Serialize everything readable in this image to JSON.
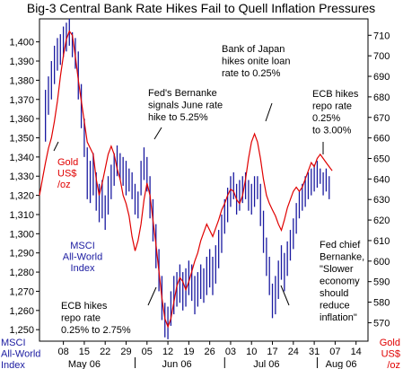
{
  "chart_data": {
    "type": "line",
    "title": "Big-3 Central Bank Rate Hikes Fail to Quell Inflation Pressures",
    "colors": {
      "msci": "#1a1aa0",
      "gold": "#e00000",
      "text": "#000000"
    },
    "x_ticks": [
      "08",
      "15",
      "22",
      "29",
      "05",
      "12",
      "19",
      "26",
      "03",
      "10",
      "17",
      "24",
      "31",
      "07",
      "14"
    ],
    "months": [
      {
        "label": "May 06",
        "center_day": 15
      },
      {
        "label": "Jun 06",
        "center_day": 46
      },
      {
        "label": "Jul 06",
        "center_day": 76
      },
      {
        "label": "Aug 06",
        "center_day": 101
      }
    ],
    "month_separator_days": [
      32,
      62,
      93
    ],
    "x_range_days": [
      0,
      110
    ],
    "left_axis": {
      "ylim": [
        1244,
        1412
      ],
      "ticks": [
        1250,
        1260,
        1270,
        1280,
        1290,
        1300,
        1310,
        1320,
        1330,
        1340,
        1350,
        1360,
        1370,
        1380,
        1390,
        1400
      ],
      "tick_labels": [
        "1,250",
        "1,260",
        "1,270",
        "1,280",
        "1,290",
        "1,300",
        "1,310",
        "1,320",
        "1,330",
        "1,340",
        "1,350",
        "1,360",
        "1,370",
        "1,380",
        "1,390",
        "1,400"
      ],
      "label_lines": [
        "MSCI",
        "All-World",
        "Index"
      ]
    },
    "right_axis": {
      "ylim": [
        561,
        718
      ],
      "ticks": [
        570,
        580,
        590,
        600,
        610,
        620,
        630,
        640,
        650,
        660,
        670,
        680,
        690,
        700,
        710
      ],
      "label_lines": [
        "Gold",
        "US$",
        "/oz"
      ]
    },
    "series": [
      {
        "name": "MSCI All-World Index",
        "axis": "left",
        "style": "hlc-bars",
        "bars": [
          [
            2,
            1348,
            1375
          ],
          [
            3,
            1362,
            1382
          ],
          [
            4,
            1370,
            1390
          ],
          [
            5,
            1378,
            1398
          ],
          [
            6,
            1385,
            1402
          ],
          [
            7,
            1388,
            1404
          ],
          [
            8,
            1392,
            1408
          ],
          [
            9,
            1395,
            1410
          ],
          [
            10,
            1398,
            1412
          ],
          [
            11,
            1392,
            1405
          ],
          [
            12,
            1386,
            1402
          ],
          [
            13,
            1370,
            1395
          ],
          [
            14,
            1355,
            1378
          ],
          [
            15,
            1340,
            1360
          ],
          [
            16,
            1318,
            1345
          ],
          [
            17,
            1316,
            1338
          ],
          [
            18,
            1320,
            1342
          ],
          [
            19,
            1312,
            1332
          ],
          [
            20,
            1306,
            1326
          ],
          [
            21,
            1308,
            1328
          ],
          [
            22,
            1302,
            1320
          ],
          [
            23,
            1310,
            1330
          ],
          [
            24,
            1318,
            1336
          ],
          [
            25,
            1325,
            1342
          ],
          [
            26,
            1330,
            1346
          ],
          [
            27,
            1328,
            1342
          ],
          [
            28,
            1325,
            1340
          ],
          [
            29,
            1320,
            1338
          ],
          [
            30,
            1322,
            1334
          ],
          [
            31,
            1318,
            1332
          ],
          [
            32,
            1310,
            1326
          ],
          [
            33,
            1308,
            1322
          ],
          [
            34,
            1320,
            1338
          ],
          [
            35,
            1328,
            1345
          ],
          [
            36,
            1322,
            1340
          ],
          [
            37,
            1308,
            1330
          ],
          [
            38,
            1296,
            1318
          ],
          [
            39,
            1282,
            1305
          ],
          [
            40,
            1270,
            1292
          ],
          [
            41,
            1255,
            1278
          ],
          [
            42,
            1246,
            1264
          ],
          [
            43,
            1245,
            1262
          ],
          [
            44,
            1252,
            1270
          ],
          [
            45,
            1258,
            1278
          ],
          [
            46,
            1262,
            1280
          ],
          [
            47,
            1264,
            1284
          ],
          [
            48,
            1260,
            1280
          ],
          [
            49,
            1262,
            1282
          ],
          [
            50,
            1268,
            1286
          ],
          [
            51,
            1265,
            1284
          ],
          [
            52,
            1258,
            1278
          ],
          [
            53,
            1262,
            1280
          ],
          [
            54,
            1266,
            1284
          ],
          [
            55,
            1264,
            1282
          ],
          [
            56,
            1268,
            1288
          ],
          [
            57,
            1272,
            1292
          ],
          [
            58,
            1268,
            1288
          ],
          [
            59,
            1274,
            1294
          ],
          [
            60,
            1282,
            1302
          ],
          [
            61,
            1290,
            1310
          ],
          [
            62,
            1300,
            1318
          ],
          [
            63,
            1306,
            1324
          ],
          [
            64,
            1314,
            1330
          ],
          [
            65,
            1318,
            1332
          ],
          [
            66,
            1310,
            1326
          ],
          [
            67,
            1312,
            1328
          ],
          [
            68,
            1316,
            1330
          ],
          [
            69,
            1318,
            1332
          ],
          [
            70,
            1312,
            1328
          ],
          [
            71,
            1310,
            1326
          ],
          [
            72,
            1314,
            1330
          ],
          [
            73,
            1318,
            1330
          ],
          [
            74,
            1304,
            1326
          ],
          [
            75,
            1290,
            1312
          ],
          [
            76,
            1278,
            1298
          ],
          [
            77,
            1268,
            1288
          ],
          [
            78,
            1256,
            1274
          ],
          [
            79,
            1258,
            1278
          ],
          [
            80,
            1266,
            1286
          ],
          [
            81,
            1276,
            1294
          ],
          [
            82,
            1270,
            1290
          ],
          [
            83,
            1278,
            1296
          ],
          [
            84,
            1286,
            1302
          ],
          [
            85,
            1292,
            1308
          ],
          [
            86,
            1300,
            1316
          ],
          [
            87,
            1308,
            1322
          ],
          [
            88,
            1312,
            1326
          ],
          [
            89,
            1314,
            1330
          ],
          [
            90,
            1318,
            1332
          ],
          [
            91,
            1320,
            1334
          ],
          [
            92,
            1322,
            1336
          ],
          [
            93,
            1324,
            1338
          ],
          [
            94,
            1326,
            1334
          ],
          [
            95,
            1320,
            1332
          ],
          [
            96,
            1322,
            1334
          ],
          [
            97,
            1318,
            1330
          ]
        ]
      },
      {
        "name": "Gold US$/oz",
        "axis": "right",
        "style": "line",
        "points": [
          [
            0,
            632
          ],
          [
            1,
            640
          ],
          [
            2,
            648
          ],
          [
            3,
            655
          ],
          [
            4,
            660
          ],
          [
            5,
            668
          ],
          [
            6,
            678
          ],
          [
            7,
            690
          ],
          [
            8,
            700
          ],
          [
            9,
            708
          ],
          [
            10,
            712
          ],
          [
            11,
            710
          ],
          [
            12,
            700
          ],
          [
            13,
            688
          ],
          [
            14,
            678
          ],
          [
            15,
            668
          ],
          [
            16,
            658
          ],
          [
            17,
            655
          ],
          [
            18,
            652
          ],
          [
            19,
            640
          ],
          [
            20,
            632
          ],
          [
            21,
            638
          ],
          [
            22,
            645
          ],
          [
            23,
            652
          ],
          [
            24,
            656
          ],
          [
            25,
            652
          ],
          [
            26,
            645
          ],
          [
            27,
            640
          ],
          [
            28,
            632
          ],
          [
            29,
            628
          ],
          [
            30,
            622
          ],
          [
            31,
            612
          ],
          [
            32,
            605
          ],
          [
            33,
            610
          ],
          [
            34,
            618
          ],
          [
            35,
            630
          ],
          [
            36,
            638
          ],
          [
            37,
            632
          ],
          [
            38,
            620
          ],
          [
            39,
            608
          ],
          [
            40,
            595
          ],
          [
            41,
            582
          ],
          [
            42,
            572
          ],
          [
            43,
            568
          ],
          [
            44,
            572
          ],
          [
            45,
            580
          ],
          [
            46,
            588
          ],
          [
            47,
            592
          ],
          [
            48,
            590
          ],
          [
            49,
            586
          ],
          [
            50,
            590
          ],
          [
            51,
            595
          ],
          [
            52,
            600
          ],
          [
            53,
            604
          ],
          [
            54,
            610
          ],
          [
            55,
            614
          ],
          [
            56,
            618
          ],
          [
            57,
            615
          ],
          [
            58,
            612
          ],
          [
            59,
            616
          ],
          [
            60,
            620
          ],
          [
            61,
            625
          ],
          [
            62,
            628
          ],
          [
            63,
            632
          ],
          [
            64,
            635
          ],
          [
            65,
            634
          ],
          [
            66,
            630
          ],
          [
            67,
            628
          ],
          [
            68,
            632
          ],
          [
            69,
            640
          ],
          [
            70,
            650
          ],
          [
            71,
            658
          ],
          [
            72,
            662
          ],
          [
            73,
            658
          ],
          [
            74,
            650
          ],
          [
            75,
            640
          ],
          [
            76,
            632
          ],
          [
            77,
            628
          ],
          [
            78,
            625
          ],
          [
            79,
            622
          ],
          [
            80,
            618
          ],
          [
            81,
            615
          ],
          [
            82,
            620
          ],
          [
            83,
            626
          ],
          [
            84,
            630
          ],
          [
            85,
            634
          ],
          [
            86,
            636
          ],
          [
            87,
            634
          ],
          [
            88,
            636
          ],
          [
            89,
            640
          ],
          [
            90,
            644
          ],
          [
            91,
            648
          ],
          [
            92,
            646
          ],
          [
            93,
            650
          ],
          [
            94,
            652
          ],
          [
            95,
            650
          ],
          [
            96,
            648
          ],
          [
            97,
            646
          ],
          [
            98,
            644
          ]
        ]
      }
    ],
    "annotations": [
      {
        "lines": [
          "Fed's Bernanke",
          "signals June rate",
          "hike to 5.25%"
        ],
        "color": "black"
      },
      {
        "lines": [
          "Bank of Japan",
          "hikes onite loan",
          "rate to 0.25%"
        ],
        "color": "black"
      },
      {
        "lines": [
          "ECB hikes",
          "repo rate",
          "0.25%",
          "to 3.00%"
        ],
        "color": "black"
      },
      {
        "lines": [
          "ECB hikes",
          "repo rate",
          "0.25% to 2.75%"
        ],
        "color": "black"
      },
      {
        "lines": [
          "Fed chief",
          "Bernanke,",
          "\"Slower",
          "economy",
          "should",
          "reduce",
          "inflation\""
        ],
        "color": "black"
      },
      {
        "lines": [
          "MSCI",
          "All-World",
          "Index"
        ],
        "color": "blue"
      },
      {
        "lines": [
          "Gold",
          "US$",
          "/oz"
        ],
        "color": "red"
      }
    ]
  }
}
